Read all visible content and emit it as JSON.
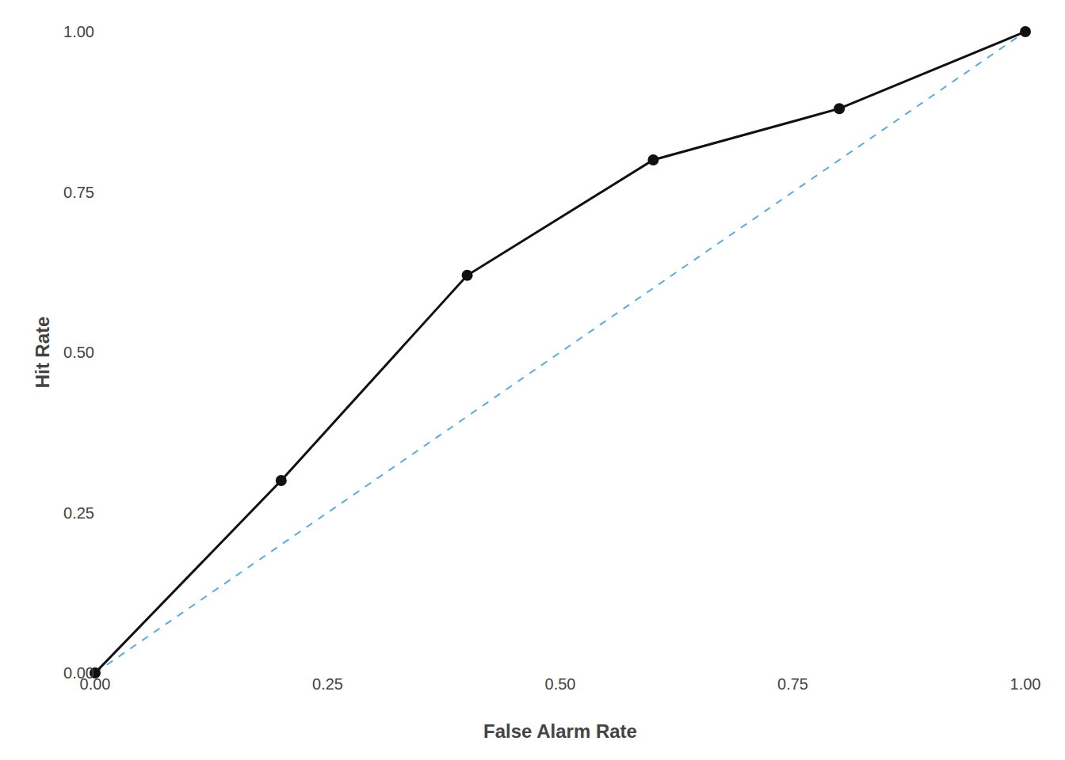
{
  "chart_data": {
    "type": "line",
    "xlabel": "False Alarm Rate",
    "ylabel": "Hit Rate",
    "xlim": [
      0.0,
      1.0
    ],
    "ylim": [
      0.0,
      1.0
    ],
    "xticks": [
      {
        "value": 0.0,
        "label": "0.00"
      },
      {
        "value": 0.25,
        "label": "0.25"
      },
      {
        "value": 0.5,
        "label": "0.50"
      },
      {
        "value": 0.75,
        "label": "0.75"
      },
      {
        "value": 1.0,
        "label": "1.00"
      }
    ],
    "yticks": [
      {
        "value": 0.0,
        "label": "0.00"
      },
      {
        "value": 0.25,
        "label": "0.25"
      },
      {
        "value": 0.5,
        "label": "0.50"
      },
      {
        "value": 0.75,
        "label": "0.75"
      },
      {
        "value": 1.0,
        "label": "1.00"
      }
    ],
    "grid": false,
    "series": [
      {
        "x": [
          0.0,
          1.0
        ],
        "values": [
          0.0,
          1.0
        ],
        "color": "#5AACE0",
        "line_style": "dashed"
      },
      {
        "x": [
          0.0,
          0.2,
          0.4,
          0.6,
          0.8,
          1.0
        ],
        "values": [
          0.0,
          0.3,
          0.62,
          0.8,
          0.88,
          1.0
        ],
        "color": "#111111",
        "marker": "circle"
      }
    ]
  }
}
